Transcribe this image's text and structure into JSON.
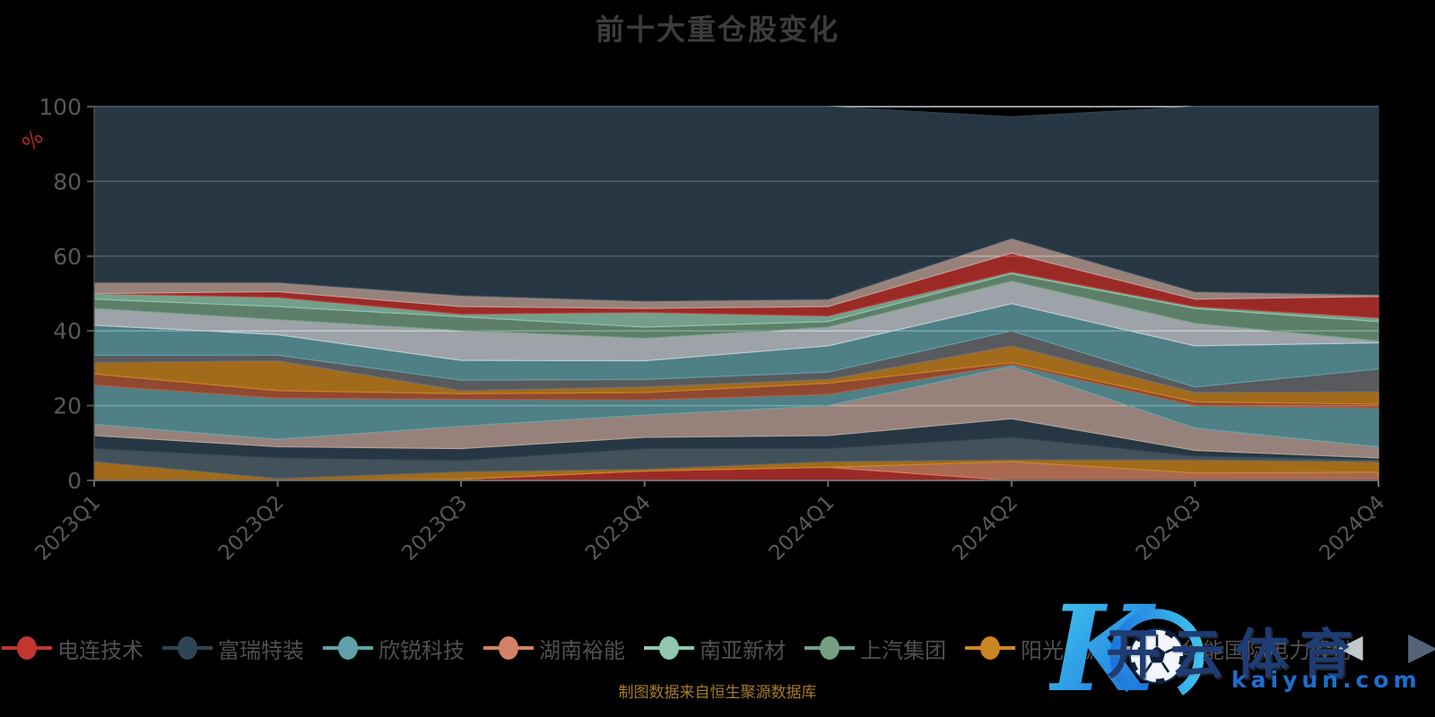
{
  "title": "前十大重仓股变化",
  "footer": "制图数据来自恒生聚源数据库",
  "legend": {
    "prev_arrow": "◀",
    "next_arrow": "▶",
    "items": [
      {
        "label": "电连技术",
        "color": "#c23531"
      },
      {
        "label": "富瑞特装",
        "color": "#2f4554"
      },
      {
        "label": "欣锐科技",
        "color": "#61a0a8"
      },
      {
        "label": "湖南裕能",
        "color": "#d48265"
      },
      {
        "label": "南亚新材",
        "color": "#91c7ae"
      },
      {
        "label": "上汽集团",
        "color": "#749f83"
      },
      {
        "label": "阳光电源",
        "color": "#ca8622"
      },
      {
        "label": "华能国际电力股份",
        "color": "#bda29a"
      }
    ]
  },
  "watermark": {
    "logo_letter": "K",
    "brand": "开云体育",
    "domain": "kaiyun.com",
    "brand_color": "#1e3c74",
    "domain_color": "#1a6fd0",
    "logo_gradient": [
      "#45d0f2",
      "#1566d8"
    ]
  },
  "chart_data": {
    "type": "area",
    "stacked": true,
    "title": "前十大重仓股变化",
    "xlabel": "",
    "ylabel": "%",
    "ylabel_color": "#b2252a",
    "axis_text_color": "#55595c",
    "axis_line_color": "#6e6e6e",
    "grid": true,
    "grid_color": "#ffffff",
    "legend_position": "bottom",
    "ylim": [
      0,
      100
    ],
    "yticks": [
      0,
      20,
      40,
      60,
      80,
      100
    ],
    "categories": [
      "2023Q1",
      "2023Q2",
      "2023Q3",
      "2023Q4",
      "2024Q1",
      "2024Q2",
      "2024Q3",
      "2024Q4"
    ],
    "series": [
      {
        "name": "",
        "color": "#c23531",
        "values": [
          0,
          0,
          0.3,
          2.5,
          3.5,
          0,
          0,
          0
        ]
      },
      {
        "name": "湖南裕能",
        "color": "#d48265",
        "values": [
          0,
          0,
          0,
          0,
          0,
          5,
          2,
          2.2
        ]
      },
      {
        "name": "阳光电源",
        "color": "#ca8622",
        "values": [
          5,
          0.5,
          2,
          0.5,
          1.5,
          0.5,
          3.5,
          2.8
        ]
      },
      {
        "name": "",
        "color": "#546570",
        "values": [
          3.5,
          5.5,
          3,
          5.5,
          3.5,
          6,
          1,
          0.5
        ]
      },
      {
        "name": "富瑞特装",
        "color": "#2f4554",
        "values": [
          3.5,
          3,
          3.2,
          3,
          3.5,
          5,
          1.5,
          0.5
        ]
      },
      {
        "name": "华能国际电力股份",
        "color": "#bda29a",
        "values": [
          3,
          2,
          6,
          6,
          8,
          14,
          6,
          3
        ]
      },
      {
        "name": "欣锐科技",
        "color": "#61a0a8",
        "values": [
          10.5,
          11,
          7.2,
          4,
          3,
          0.5,
          6,
          10.4
        ]
      },
      {
        "name": "",
        "color": "#b55a3c",
        "values": [
          3,
          2,
          1.5,
          2,
          3,
          0.5,
          1,
          1
        ]
      },
      {
        "name": "",
        "color": "#ca8622",
        "values": [
          3,
          8,
          0.8,
          1.5,
          1,
          4.5,
          2.5,
          3.3
        ]
      },
      {
        "name": "",
        "color": "#6e7074",
        "values": [
          2,
          1.5,
          2.8,
          2,
          2,
          4,
          1.5,
          6.1
        ]
      },
      {
        "name": "",
        "color": "#61a0a8",
        "values": [
          8,
          5.5,
          5.3,
          5,
          7,
          7.3,
          11,
          7
        ]
      },
      {
        "name": "",
        "color": "#c4ccd3",
        "values": [
          4.5,
          4,
          8,
          6,
          5,
          6,
          6,
          0.5
        ]
      },
      {
        "name": "上汽集团",
        "color": "#749f83",
        "values": [
          2.5,
          3.5,
          3.7,
          3,
          1.5,
          2,
          4,
          5.2
        ]
      },
      {
        "name": "南亚新材",
        "color": "#91c7ae",
        "values": [
          1.5,
          2.5,
          0.7,
          4,
          1.5,
          0.5,
          0.5,
          1
        ]
      },
      {
        "name": "电连技术",
        "color": "#c23531",
        "values": [
          0,
          1.5,
          2,
          1,
          2.5,
          5,
          2,
          5.7
        ]
      },
      {
        "name": "",
        "color": "#bda29a",
        "values": [
          3,
          2.5,
          3,
          2,
          2,
          4,
          2,
          0.5
        ]
      },
      {
        "name": "",
        "color": "#2f4554",
        "values": [
          47,
          47,
          50.5,
          52,
          51.5,
          32.5,
          49.5,
          50.3
        ]
      }
    ]
  }
}
